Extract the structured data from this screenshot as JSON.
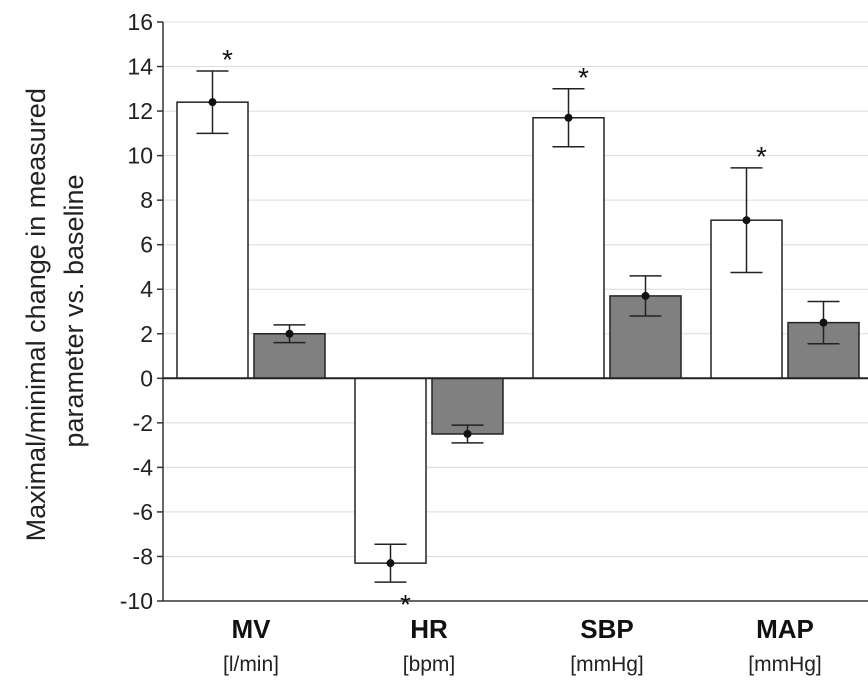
{
  "chart_data": {
    "type": "bar",
    "title": "",
    "ylabel_lines": [
      "Maximal/minimal change in measured",
      "parameter vs. baseline"
    ],
    "xlabel": "",
    "ylim": [
      -10,
      16
    ],
    "yticks": [
      16,
      14,
      12,
      10,
      8,
      6,
      4,
      2,
      0,
      -2,
      -4,
      -6,
      -8,
      -10
    ],
    "grid": true,
    "legend": "none",
    "categories": [
      {
        "name": "MV",
        "unit": "[l/min]"
      },
      {
        "name": "HR",
        "unit": "[bpm]"
      },
      {
        "name": "SBP",
        "unit": "[mmHg]"
      },
      {
        "name": "MAP",
        "unit": "[mmHg]"
      }
    ],
    "series": [
      {
        "color": "#ffffff",
        "values": [
          12.4,
          -8.3,
          11.7,
          7.1
        ],
        "error": [
          1.4,
          0.85,
          1.3,
          2.35
        ],
        "significant": [
          true,
          true,
          true,
          true
        ]
      },
      {
        "color": "#808080",
        "values": [
          2.0,
          -2.5,
          3.7,
          2.5
        ],
        "error": [
          0.4,
          0.4,
          0.9,
          0.95
        ],
        "significant": [
          false,
          false,
          false,
          false
        ]
      }
    ],
    "significance_marker": "*"
  }
}
